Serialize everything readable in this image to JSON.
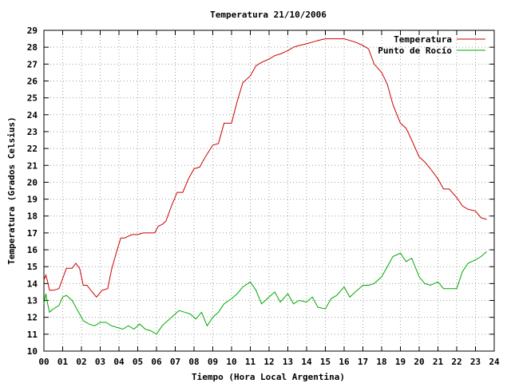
{
  "chart_data": {
    "type": "line",
    "title": "Temperatura 21/10/2006",
    "xlabel": "Tiempo (Hora Local Argentina)",
    "ylabel": "Temperatura (Grados Celsius)",
    "xlim": [
      0,
      24
    ],
    "ylim": [
      10,
      29
    ],
    "x_ticks": [
      "00",
      "01",
      "02",
      "03",
      "04",
      "05",
      "06",
      "07",
      "08",
      "09",
      "10",
      "11",
      "12",
      "13",
      "14",
      "15",
      "16",
      "17",
      "18",
      "19",
      "20",
      "21",
      "22",
      "23",
      "24"
    ],
    "y_ticks": [
      10,
      11,
      12,
      13,
      14,
      15,
      16,
      17,
      18,
      19,
      20,
      21,
      22,
      23,
      24,
      25,
      26,
      27,
      28,
      29
    ],
    "grid": true,
    "legend_position": "top-right",
    "series": [
      {
        "name": "Temperatura",
        "color": "#cc0000",
        "x": [
          0.0,
          0.1,
          0.2,
          0.3,
          0.5,
          0.8,
          1.0,
          1.2,
          1.5,
          1.7,
          1.9,
          2.1,
          2.3,
          2.5,
          2.8,
          3.1,
          3.4,
          3.6,
          3.9,
          4.1,
          4.3,
          4.5,
          4.7,
          5.0,
          5.3,
          5.6,
          5.9,
          6.1,
          6.3,
          6.5,
          6.8,
          7.1,
          7.4,
          7.7,
          8.0,
          8.3,
          8.6,
          9.0,
          9.3,
          9.6,
          10.0,
          10.3,
          10.6,
          11.0,
          11.3,
          11.6,
          12.0,
          12.3,
          12.6,
          13.0,
          13.3,
          13.6,
          14.0,
          14.3,
          14.6,
          15.0,
          15.3,
          15.6,
          16.0,
          16.3,
          16.6,
          17.0,
          17.3,
          17.6,
          18.0,
          18.3,
          18.6,
          19.0,
          19.3,
          19.6,
          20.0,
          20.3,
          20.6,
          21.0,
          21.3,
          21.6,
          22.0,
          22.3,
          22.6,
          23.0,
          23.3,
          23.6
        ],
        "y": [
          14.2,
          14.5,
          14.1,
          13.6,
          13.6,
          13.7,
          14.3,
          14.9,
          14.9,
          15.2,
          14.9,
          13.9,
          13.9,
          13.6,
          13.2,
          13.6,
          13.7,
          14.8,
          16.0,
          16.7,
          16.7,
          16.8,
          16.9,
          16.9,
          17.0,
          17.0,
          17.0,
          17.4,
          17.5,
          17.7,
          18.6,
          19.4,
          19.4,
          20.2,
          20.8,
          20.9,
          21.5,
          22.2,
          22.3,
          23.5,
          23.5,
          24.8,
          25.9,
          26.3,
          26.9,
          27.1,
          27.3,
          27.5,
          27.6,
          27.8,
          28.0,
          28.1,
          28.2,
          28.3,
          28.4,
          28.5,
          28.5,
          28.5,
          28.5,
          28.4,
          28.3,
          28.1,
          27.9,
          27.0,
          26.5,
          25.8,
          24.6,
          23.5,
          23.2,
          22.5,
          21.5,
          21.2,
          20.8,
          20.2,
          19.6,
          19.6,
          19.1,
          18.6,
          18.4,
          18.3,
          17.9,
          17.8
        ]
      },
      {
        "name": "Punto de Rocío",
        "color": "#00aa00",
        "x": [
          0.0,
          0.1,
          0.2,
          0.3,
          0.5,
          0.8,
          1.0,
          1.2,
          1.5,
          1.8,
          2.1,
          2.4,
          2.7,
          3.0,
          3.3,
          3.6,
          3.9,
          4.2,
          4.5,
          4.8,
          5.1,
          5.4,
          5.7,
          6.0,
          6.3,
          6.6,
          6.9,
          7.2,
          7.5,
          7.8,
          8.1,
          8.4,
          8.7,
          9.0,
          9.3,
          9.6,
          10.0,
          10.3,
          10.6,
          11.0,
          11.3,
          11.6,
          12.0,
          12.3,
          12.6,
          13.0,
          13.3,
          13.6,
          14.0,
          14.3,
          14.6,
          15.0,
          15.3,
          15.6,
          16.0,
          16.3,
          16.6,
          17.0,
          17.3,
          17.6,
          18.0,
          18.3,
          18.6,
          19.0,
          19.3,
          19.6,
          20.0,
          20.3,
          20.6,
          21.0,
          21.3,
          21.6,
          22.0,
          22.3,
          22.6,
          23.0,
          23.3,
          23.6
        ],
        "y": [
          12.8,
          13.4,
          12.8,
          12.3,
          12.5,
          12.7,
          13.2,
          13.3,
          13.0,
          12.4,
          11.8,
          11.6,
          11.5,
          11.7,
          11.7,
          11.5,
          11.4,
          11.3,
          11.5,
          11.3,
          11.6,
          11.3,
          11.2,
          11.0,
          11.5,
          11.8,
          12.1,
          12.4,
          12.3,
          12.2,
          11.9,
          12.3,
          11.5,
          12.0,
          12.3,
          12.8,
          13.1,
          13.4,
          13.8,
          14.1,
          13.6,
          12.8,
          13.2,
          13.5,
          12.9,
          13.4,
          12.8,
          13.0,
          12.9,
          13.2,
          12.6,
          12.5,
          13.1,
          13.3,
          13.8,
          13.2,
          13.5,
          13.9,
          13.9,
          14.0,
          14.4,
          15.0,
          15.6,
          15.8,
          15.3,
          15.5,
          14.4,
          14.0,
          13.9,
          14.1,
          13.7,
          13.7,
          13.7,
          14.7,
          15.2,
          15.4,
          15.6,
          15.9
        ]
      }
    ]
  }
}
